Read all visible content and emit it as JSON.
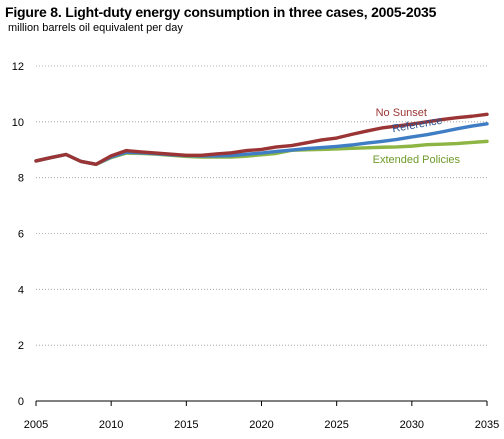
{
  "chart_data": {
    "type": "line",
    "title": "Figure 8. Light-duty energy consumption in three cases, 2005-2035",
    "ylabel": "million barrels  oil equivalent  per day",
    "xlabel": "",
    "xlim": [
      2005,
      2035
    ],
    "ylim": [
      0,
      12
    ],
    "x_ticks": [
      2005,
      2010,
      2015,
      2020,
      2025,
      2030,
      2035
    ],
    "y_ticks": [
      0,
      2,
      4,
      6,
      8,
      10,
      12
    ],
    "grid": {
      "horizontal": true,
      "vertical": false
    },
    "x": [
      2005,
      2006,
      2007,
      2008,
      2009,
      2010,
      2011,
      2012,
      2013,
      2014,
      2015,
      2016,
      2017,
      2018,
      2019,
      2020,
      2021,
      2022,
      2023,
      2024,
      2025,
      2026,
      2027,
      2028,
      2029,
      2030,
      2031,
      2032,
      2033,
      2034,
      2035
    ],
    "series": [
      {
        "name": "No Sunset",
        "color": "#9b3535",
        "values": [
          8.6,
          8.72,
          8.83,
          8.58,
          8.48,
          8.78,
          8.97,
          8.92,
          8.88,
          8.84,
          8.8,
          8.8,
          8.85,
          8.89,
          8.97,
          9.01,
          9.1,
          9.15,
          9.25,
          9.35,
          9.42,
          9.55,
          9.67,
          9.78,
          9.85,
          9.92,
          10.0,
          10.08,
          10.15,
          10.2,
          10.27
        ]
      },
      {
        "name": "Reference",
        "color": "#3f7ec4",
        "values": [
          8.6,
          8.72,
          8.83,
          8.58,
          8.48,
          8.74,
          8.91,
          8.89,
          8.86,
          8.82,
          8.79,
          8.78,
          8.78,
          8.79,
          8.84,
          8.88,
          8.94,
          8.99,
          9.04,
          9.08,
          9.12,
          9.17,
          9.24,
          9.3,
          9.37,
          9.46,
          9.54,
          9.64,
          9.75,
          9.85,
          9.93
        ]
      },
      {
        "name": "Extended Policies",
        "color": "#8db543",
        "values": [
          8.6,
          8.72,
          8.83,
          8.58,
          8.48,
          8.72,
          8.88,
          8.87,
          8.84,
          8.8,
          8.76,
          8.74,
          8.74,
          8.74,
          8.77,
          8.82,
          8.87,
          8.98,
          9.0,
          9.01,
          9.03,
          9.05,
          9.07,
          9.09,
          9.1,
          9.13,
          9.18,
          9.2,
          9.22,
          9.26,
          9.3
        ]
      }
    ]
  }
}
